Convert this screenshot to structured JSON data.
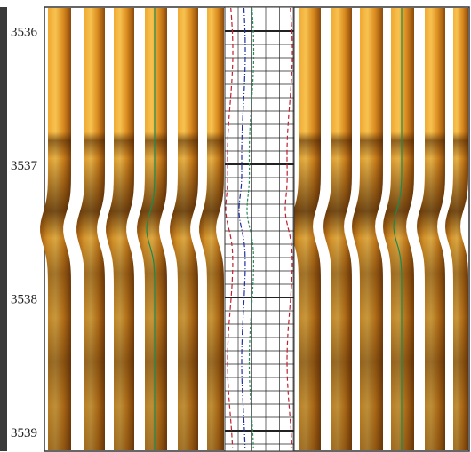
{
  "depth_track": {
    "labels": [
      3536,
      3537,
      3538,
      3539
    ]
  }
}
